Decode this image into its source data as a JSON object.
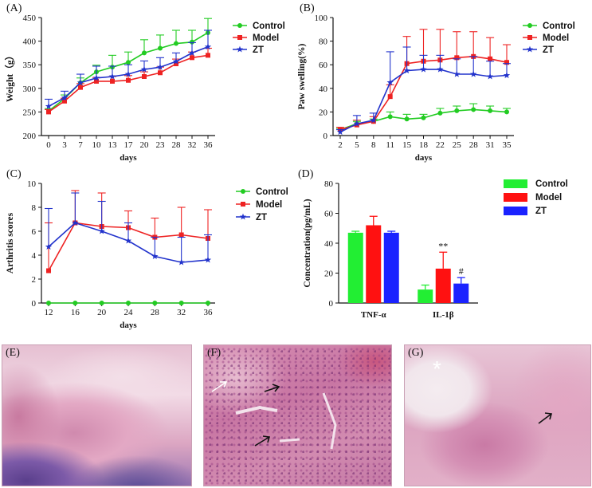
{
  "chart_data": [
    {
      "id": "A",
      "panel_label": "(A)",
      "type": "line",
      "xlabel": "days",
      "ylabel": "Weight（g）",
      "x": [
        0,
        3,
        7,
        10,
        13,
        17,
        20,
        23,
        28,
        32,
        36
      ],
      "ylim": [
        200,
        450
      ],
      "yticks": [
        200,
        250,
        300,
        350,
        400,
        450
      ],
      "legend": "top-right",
      "series": [
        {
          "name": "Control",
          "color": "#22cc22",
          "marker": "circle",
          "values": [
            252,
            278,
            312,
            335,
            345,
            355,
            375,
            385,
            395,
            398,
            418
          ],
          "errors": [
            5,
            8,
            10,
            14,
            25,
            22,
            28,
            28,
            28,
            25,
            30
          ]
        },
        {
          "name": "Model",
          "color": "#ee2222",
          "marker": "square",
          "values": [
            250,
            273,
            302,
            315,
            315,
            317,
            325,
            333,
            352,
            365,
            370
          ],
          "errors": [
            5,
            6,
            8,
            8,
            10,
            10,
            10,
            12,
            10,
            12,
            15
          ]
        },
        {
          "name": "ZT",
          "color": "#2233cc",
          "marker": "star",
          "values": [
            262,
            280,
            312,
            322,
            325,
            330,
            340,
            345,
            357,
            375,
            388
          ],
          "errors": [
            15,
            14,
            18,
            25,
            22,
            20,
            18,
            20,
            18,
            22,
            35
          ]
        }
      ]
    },
    {
      "id": "B",
      "panel_label": "(B)",
      "type": "line",
      "xlabel": "days",
      "ylabel": "Paw swelling(%)",
      "x": [
        2,
        5,
        8,
        11,
        15,
        18,
        22,
        25,
        28,
        31,
        35
      ],
      "ylim": [
        0,
        100
      ],
      "yticks": [
        0,
        20,
        40,
        60,
        80,
        100
      ],
      "legend": "top-right",
      "series": [
        {
          "name": "Control",
          "color": "#22cc22",
          "marker": "circle",
          "values": [
            5,
            10,
            12,
            16,
            14,
            15,
            19,
            21,
            22,
            21,
            20
          ],
          "errors": [
            1,
            2,
            2,
            4,
            4,
            3,
            4,
            4,
            5,
            4,
            3
          ]
        },
        {
          "name": "Model",
          "color": "#ee2222",
          "marker": "square",
          "values": [
            5,
            9,
            12,
            33,
            61,
            63,
            64,
            66,
            67,
            65,
            62
          ],
          "errors": [
            2,
            4,
            4,
            10,
            23,
            27,
            26,
            22,
            21,
            18,
            15
          ]
        },
        {
          "name": "ZT",
          "color": "#2233cc",
          "marker": "star",
          "values": [
            3,
            10,
            13,
            45,
            55,
            56,
            56,
            52,
            52,
            50,
            51
          ],
          "errors": [
            2,
            7,
            6,
            26,
            20,
            12,
            12,
            13,
            15,
            13,
            10
          ]
        }
      ]
    },
    {
      "id": "C",
      "panel_label": "(C)",
      "type": "line",
      "xlabel": "days",
      "ylabel": "Arthritis scores",
      "x": [
        12,
        16,
        20,
        24,
        28,
        32,
        36
      ],
      "ylim": [
        0,
        10
      ],
      "yticks": [
        0,
        2,
        4,
        6,
        8,
        10
      ],
      "legend": "top-right",
      "series": [
        {
          "name": "Control",
          "color": "#22cc22",
          "marker": "circle",
          "values": [
            0,
            0,
            0,
            0,
            0,
            0,
            0
          ],
          "errors": [
            0,
            0,
            0,
            0,
            0,
            0,
            0
          ]
        },
        {
          "name": "Model",
          "color": "#ee2222",
          "marker": "square",
          "values": [
            2.7,
            6.7,
            6.4,
            6.3,
            5.5,
            5.7,
            5.4
          ],
          "errors": [
            4.0,
            2.7,
            2.8,
            1.4,
            1.6,
            2.3,
            2.4
          ]
        },
        {
          "name": "ZT",
          "color": "#2233cc",
          "marker": "star",
          "values": [
            4.7,
            6.7,
            6.0,
            5.2,
            3.9,
            3.4,
            3.6
          ],
          "errors": [
            3.2,
            2.5,
            2.5,
            1.5,
            1.6,
            2.1,
            2.1
          ]
        }
      ]
    },
    {
      "id": "D",
      "panel_label": "(D)",
      "type": "bar",
      "xlabel": "",
      "ylabel": "Concentration(pg/mL)",
      "categories": [
        "TNF-α",
        "IL-1β"
      ],
      "ylim": [
        0,
        80
      ],
      "yticks": [
        0,
        20,
        40,
        60,
        80
      ],
      "legend": "top-right",
      "series": [
        {
          "name": "Control",
          "color": "#22ee33",
          "values": [
            47,
            9
          ],
          "errors": [
            1,
            3
          ]
        },
        {
          "name": "Model",
          "color": "#ff1111",
          "values": [
            52,
            23
          ],
          "errors": [
            6,
            11
          ]
        },
        {
          "name": "ZT",
          "color": "#1a22ff",
          "values": [
            47,
            13
          ],
          "errors": [
            1,
            4
          ]
        }
      ],
      "annotations": [
        {
          "category": "IL-1β",
          "series": "Model",
          "text": "**"
        },
        {
          "category": "IL-1β",
          "series": "ZT",
          "text": "#"
        }
      ]
    }
  ],
  "histology": [
    {
      "id": "E",
      "label": "(E)"
    },
    {
      "id": "F",
      "label": "(F)"
    },
    {
      "id": "G",
      "label": "(G)",
      "asterisk": "*"
    }
  ]
}
